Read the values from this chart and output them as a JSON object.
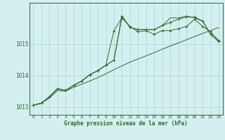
{
  "xlabel": "Graphe pression niveau de la mer (hPa)",
  "bg_color": "#d4efef",
  "grid_color": "#a8d4d4",
  "line_color": "#2d6b2d",
  "x_ticks": [
    0,
    1,
    2,
    3,
    4,
    5,
    6,
    7,
    8,
    9,
    10,
    11,
    12,
    13,
    14,
    15,
    16,
    17,
    18,
    19,
    20,
    21,
    22,
    23
  ],
  "xlim": [
    -0.5,
    23.5
  ],
  "ylim": [
    1012.75,
    1016.3
  ],
  "yticks": [
    1013,
    1014,
    1015
  ],
  "series1_x": [
    0,
    1,
    2,
    3,
    4,
    5,
    6,
    7,
    8,
    9,
    10,
    11,
    12,
    13,
    14,
    15,
    16,
    17,
    18,
    19,
    20,
    21,
    22,
    23
  ],
  "series1_y": [
    1013.05,
    1013.12,
    1013.28,
    1013.52,
    1013.5,
    1013.62,
    1013.72,
    1013.82,
    1013.93,
    1014.05,
    1014.18,
    1014.3,
    1014.42,
    1014.52,
    1014.62,
    1014.72,
    1014.83,
    1014.93,
    1015.03,
    1015.13,
    1015.23,
    1015.33,
    1015.42,
    1015.52
  ],
  "series2_x": [
    0,
    1,
    2,
    3,
    4,
    5,
    6,
    7,
    8,
    9,
    10,
    11,
    12,
    13,
    14,
    15,
    16,
    17,
    18,
    19,
    20,
    21,
    22,
    23
  ],
  "series2_y": [
    1013.05,
    1013.12,
    1013.32,
    1013.58,
    1013.52,
    1013.68,
    1013.82,
    1014.02,
    1014.15,
    1014.32,
    1015.42,
    1015.82,
    1015.55,
    1015.38,
    1015.42,
    1015.3,
    1015.42,
    1015.42,
    1015.48,
    1015.55,
    1015.78,
    1015.55,
    1015.38,
    1015.1
  ],
  "series3_x": [
    0,
    1,
    2,
    3,
    4,
    5,
    6,
    7,
    8,
    9,
    10,
    11,
    12,
    13,
    14,
    15,
    16,
    17,
    18,
    19,
    20,
    21,
    22,
    23
  ],
  "series3_y": [
    1013.05,
    1013.12,
    1013.32,
    1013.58,
    1013.52,
    1013.68,
    1013.82,
    1014.02,
    1014.15,
    1014.32,
    1014.48,
    1015.88,
    1015.52,
    1015.45,
    1015.45,
    1015.45,
    1015.58,
    1015.68,
    1015.78,
    1015.85,
    1015.85,
    1015.72,
    1015.3,
    1015.07
  ],
  "series4_x": [
    0,
    1,
    2,
    3,
    4,
    5,
    6,
    7,
    8,
    9,
    10,
    11,
    12,
    13,
    14,
    15,
    16,
    17,
    18,
    19,
    20,
    21,
    22,
    23
  ],
  "series4_y": [
    1013.05,
    1013.12,
    1013.32,
    1013.58,
    1013.52,
    1013.68,
    1013.82,
    1014.02,
    1014.15,
    1014.32,
    1014.48,
    1015.88,
    1015.52,
    1015.45,
    1015.45,
    1015.45,
    1015.58,
    1015.82,
    1015.82,
    1015.88,
    1015.82,
    1015.72,
    1015.3,
    1015.07
  ]
}
